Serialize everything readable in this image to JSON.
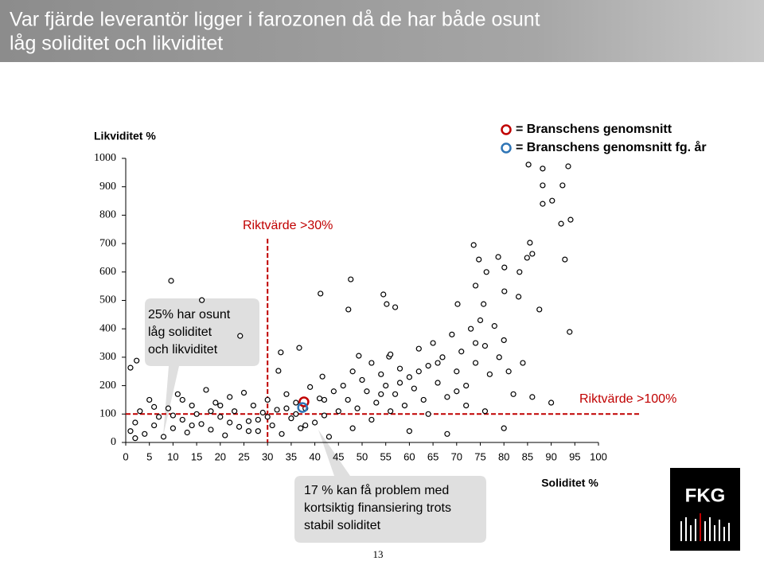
{
  "title_lines": [
    "Var fjärde leverantör ligger i farozonen då de har både osunt",
    "låg soliditet och likviditet"
  ],
  "page_number": "13",
  "logo": "FKG",
  "chart_data": {
    "type": "scatter",
    "ylabel": "Likviditet %",
    "xlabel": "Soliditet %",
    "xlim": [
      0,
      100
    ],
    "ylim": [
      0,
      1000
    ],
    "xticks": [
      0,
      5,
      10,
      15,
      20,
      25,
      30,
      35,
      40,
      45,
      50,
      55,
      60,
      65,
      70,
      75,
      80,
      85,
      90,
      95,
      100
    ],
    "yticks": [
      0,
      100,
      200,
      300,
      400,
      500,
      600,
      700,
      800,
      900,
      1000
    ],
    "marker_color": "#000000",
    "x": [
      85.2,
      88.2,
      93.6,
      88.2,
      92.4,
      88.2,
      90.2,
      94.1,
      92.1,
      73.6,
      85.5,
      74.7,
      78.8,
      84.9,
      86,
      92.9,
      76.3,
      80.1,
      83.3,
      9.6,
      47.6,
      74,
      41.2,
      54.5,
      80.1,
      16.1,
      55.2,
      57,
      47.1,
      70.2,
      75.7,
      83.1,
      87.5,
      24.2,
      93.9,
      36.7,
      32.8,
      1,
      2.3,
      32.3,
      41.6,
      49.3,
      55.7,
      1,
      2,
      3,
      4,
      5,
      6,
      7,
      8,
      9,
      10,
      11,
      12,
      13,
      14,
      15,
      16,
      17,
      18,
      19,
      20,
      21,
      22,
      23,
      24,
      25,
      26,
      27,
      28,
      29,
      30,
      31,
      32,
      33,
      34,
      35,
      36,
      37,
      38,
      39,
      40,
      41,
      42,
      43,
      44,
      45,
      2,
      6,
      10,
      14,
      18,
      22,
      26,
      30,
      34,
      38,
      42,
      12,
      20,
      28,
      36,
      46,
      47,
      48,
      49,
      50,
      51,
      52,
      53,
      54,
      55,
      56,
      57,
      58,
      59,
      60,
      61,
      62,
      63,
      64,
      65,
      66,
      67,
      68,
      69,
      70,
      71,
      72,
      73,
      74,
      75,
      76,
      77,
      78,
      79,
      80,
      81,
      82,
      84,
      86,
      90,
      48,
      52,
      56,
      60,
      64,
      68,
      72,
      76,
      80,
      62,
      66,
      70,
      74,
      58,
      54
    ],
    "values": [
      978,
      964,
      972,
      905,
      905,
      840,
      851,
      784,
      770,
      695,
      703,
      644,
      653,
      650,
      664,
      644,
      600,
      616,
      600,
      569,
      574,
      552,
      524,
      521,
      532,
      501,
      487,
      476,
      468,
      487,
      487,
      513,
      468,
      375,
      389,
      333,
      317,
      263,
      288,
      252,
      232,
      305,
      302,
      40,
      70,
      110,
      30,
      150,
      60,
      90,
      20,
      120,
      50,
      170,
      80,
      35,
      130,
      100,
      65,
      185,
      45,
      140,
      90,
      25,
      160,
      110,
      55,
      175,
      75,
      130,
      40,
      105,
      150,
      60,
      115,
      30,
      170,
      85,
      140,
      50,
      120,
      195,
      70,
      155,
      95,
      20,
      180,
      110,
      15,
      125,
      95,
      60,
      110,
      70,
      40,
      90,
      120,
      60,
      150,
      150,
      130,
      80,
      100,
      200,
      150,
      250,
      120,
      220,
      180,
      280,
      140,
      240,
      200,
      310,
      170,
      260,
      130,
      230,
      190,
      330,
      150,
      270,
      350,
      210,
      300,
      160,
      380,
      250,
      320,
      200,
      400,
      280,
      430,
      340,
      240,
      410,
      300,
      360,
      250,
      170,
      280,
      160,
      140,
      50,
      80,
      110,
      40,
      100,
      30,
      130,
      110,
      50,
      250,
      280,
      180,
      350,
      210,
      170
    ],
    "averages": [
      {
        "label": "= Branschens genomsnitt",
        "color": "#c00000",
        "x": 37.7,
        "y": 143
      },
      {
        "label": "= Branschens genomsnitt fg. år",
        "color": "#2e75b6",
        "x": 37.4,
        "y": 123
      }
    ],
    "reference_lines": [
      {
        "label": "Riktvärde >30%",
        "axis": "x",
        "value": 30,
        "color": "#c00000"
      },
      {
        "label": "Riktvärde >100%",
        "axis": "y",
        "value": 100,
        "color": "#c00000"
      }
    ],
    "callouts": [
      {
        "lines": [
          "25% har osunt",
          "låg soliditet",
          "och likviditet"
        ]
      },
      {
        "lines": [
          "17 % kan få problem med",
          "kortsiktig finansiering trots",
          "stabil soliditet"
        ]
      }
    ]
  }
}
